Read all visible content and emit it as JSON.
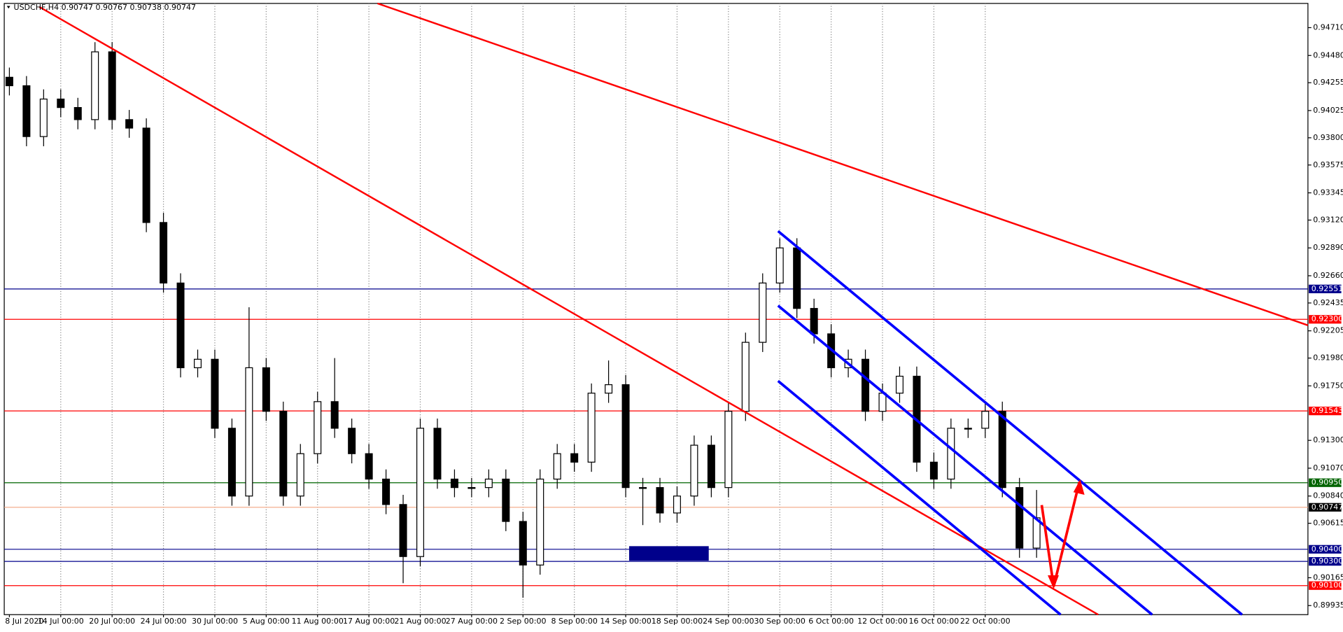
{
  "chart_data": {
    "type": "candlestick",
    "title": "USDCHF,H4  0.90747 0.90767 0.90738 0.90747",
    "categories": [
      "8 Jul 2020",
      "14 Jul 00:00",
      "20 Jul 00:00",
      "24 Jul 00:00",
      "30 Jul 00:00",
      "5 Aug 00:00",
      "11 Aug 00:00",
      "17 Aug 00:00",
      "21 Aug 00:00",
      "27 Aug 00:00",
      "2 Sep 00:00",
      "8 Sep 00:00",
      "14 Sep 00:00",
      "18 Sep 00:00",
      "24 Sep 00:00",
      "30 Sep 00:00",
      "6 Oct 00:00",
      "12 Oct 00:00",
      "16 Oct 00:00",
      "22 Oct 00:00"
    ],
    "ohlc": [
      [
        0.943,
        0.9438,
        0.9415,
        0.9423
      ],
      [
        0.9423,
        0.9431,
        0.9373,
        0.9381
      ],
      [
        0.9381,
        0.942,
        0.9373,
        0.9412
      ],
      [
        0.9412,
        0.942,
        0.9397,
        0.9405
      ],
      [
        0.9405,
        0.9413,
        0.9387,
        0.9395
      ],
      [
        0.9395,
        0.9459,
        0.9387,
        0.9451
      ],
      [
        0.9451,
        0.9459,
        0.9387,
        0.9395
      ],
      [
        0.9395,
        0.9403,
        0.938,
        0.9388
      ],
      [
        0.9388,
        0.9396,
        0.9302,
        0.931
      ],
      [
        0.931,
        0.9318,
        0.9252,
        0.926
      ],
      [
        0.926,
        0.9268,
        0.9182,
        0.919
      ],
      [
        0.919,
        0.9205,
        0.9182,
        0.9197
      ],
      [
        0.9197,
        0.9205,
        0.9132,
        0.914
      ],
      [
        0.914,
        0.9148,
        0.9076,
        0.9084
      ],
      [
        0.9084,
        0.924,
        0.9076,
        0.919
      ],
      [
        0.919,
        0.9198,
        0.9146,
        0.9154
      ],
      [
        0.9154,
        0.9162,
        0.9076,
        0.9084
      ],
      [
        0.9084,
        0.9127,
        0.9076,
        0.9119
      ],
      [
        0.9119,
        0.917,
        0.9111,
        0.9162
      ],
      [
        0.9162,
        0.9198,
        0.9132,
        0.914
      ],
      [
        0.914,
        0.9148,
        0.9111,
        0.9119
      ],
      [
        0.9119,
        0.9127,
        0.909,
        0.9098
      ],
      [
        0.9098,
        0.9106,
        0.9069,
        0.9077
      ],
      [
        0.9077,
        0.9085,
        0.9012,
        0.9034
      ],
      [
        0.9034,
        0.9148,
        0.9026,
        0.914
      ],
      [
        0.914,
        0.9148,
        0.909,
        0.9098
      ],
      [
        0.9098,
        0.9106,
        0.9083,
        0.9091
      ],
      [
        0.9091,
        0.9099,
        0.9083,
        0.9091
      ],
      [
        0.9091,
        0.9106,
        0.9083,
        0.9098
      ],
      [
        0.9098,
        0.9106,
        0.9055,
        0.9063
      ],
      [
        0.9063,
        0.9071,
        0.9,
        0.9027
      ],
      [
        0.9027,
        0.9106,
        0.9019,
        0.9098
      ],
      [
        0.9098,
        0.9127,
        0.909,
        0.9119
      ],
      [
        0.9119,
        0.9127,
        0.9104,
        0.9112
      ],
      [
        0.9112,
        0.9177,
        0.9104,
        0.9169
      ],
      [
        0.9169,
        0.9196,
        0.9161,
        0.9176
      ],
      [
        0.9176,
        0.9184,
        0.9083,
        0.9091
      ],
      [
        0.9091,
        0.9099,
        0.906,
        0.9091
      ],
      [
        0.9091,
        0.9099,
        0.9062,
        0.907
      ],
      [
        0.907,
        0.9092,
        0.9062,
        0.9084
      ],
      [
        0.9084,
        0.9134,
        0.9076,
        0.9126
      ],
      [
        0.9126,
        0.9134,
        0.9083,
        0.9091
      ],
      [
        0.9091,
        0.9162,
        0.9083,
        0.9154
      ],
      [
        0.9154,
        0.9219,
        0.9146,
        0.9211
      ],
      [
        0.9211,
        0.9268,
        0.9203,
        0.926
      ],
      [
        0.926,
        0.9297,
        0.9252,
        0.9289
      ],
      [
        0.9289,
        0.9297,
        0.9231,
        0.9239
      ],
      [
        0.9239,
        0.9247,
        0.921,
        0.9218
      ],
      [
        0.9218,
        0.9226,
        0.9182,
        0.919
      ],
      [
        0.919,
        0.9205,
        0.9182,
        0.9197
      ],
      [
        0.9197,
        0.9205,
        0.9146,
        0.9154
      ],
      [
        0.9154,
        0.9177,
        0.9146,
        0.9169
      ],
      [
        0.9169,
        0.9191,
        0.9161,
        0.9183
      ],
      [
        0.9183,
        0.9191,
        0.9104,
        0.9112
      ],
      [
        0.9112,
        0.912,
        0.909,
        0.9098
      ],
      [
        0.9098,
        0.9148,
        0.909,
        0.914
      ],
      [
        0.914,
        0.9148,
        0.9132,
        0.914
      ],
      [
        0.914,
        0.9162,
        0.9132,
        0.9154
      ],
      [
        0.9154,
        0.9162,
        0.9083,
        0.9091
      ],
      [
        0.9091,
        0.9099,
        0.9033,
        0.9041
      ],
      [
        0.9041,
        0.9089,
        0.9033,
        0.9066
      ]
    ],
    "ylim": [
      0.8986,
      0.9491
    ],
    "yticks": [
      {
        "value": 0.9471,
        "label": "0.94710"
      },
      {
        "value": 0.9448,
        "label": "0.94480"
      },
      {
        "value": 0.94255,
        "label": "0.94255"
      },
      {
        "value": 0.94025,
        "label": "0.94025"
      },
      {
        "value": 0.938,
        "label": "0.93800"
      },
      {
        "value": 0.93575,
        "label": "0.93575"
      },
      {
        "value": 0.93345,
        "label": "0.93345"
      },
      {
        "value": 0.9312,
        "label": "0.93120"
      },
      {
        "value": 0.9289,
        "label": "0.92890"
      },
      {
        "value": 0.9266,
        "label": "0.92660"
      },
      {
        "value": 0.92435,
        "label": "0.92435"
      },
      {
        "value": 0.92205,
        "label": "0.92205"
      },
      {
        "value": 0.9198,
        "label": "0.91980"
      },
      {
        "value": 0.9175,
        "label": "0.91750"
      },
      {
        "value": 0.913,
        "label": "0.91300"
      },
      {
        "value": 0.9107,
        "label": "0.91070"
      },
      {
        "value": 0.9084,
        "label": "0.90840"
      },
      {
        "value": 0.90615,
        "label": "0.90615"
      },
      {
        "value": 0.90165,
        "label": "0.90165"
      },
      {
        "value": 0.89935,
        "label": "0.89935"
      }
    ],
    "hlines": [
      {
        "value": 0.92551,
        "label": "0.92551",
        "color": "#00008b"
      },
      {
        "value": 0.923,
        "label": "0.92300",
        "color": "#ff0000"
      },
      {
        "value": 0.91543,
        "label": "0.91543",
        "color": "#ff0000"
      },
      {
        "value": 0.9095,
        "label": "0.90950",
        "color": "#006400"
      },
      {
        "value": 0.90747,
        "label": "0.90747",
        "color": "#000000"
      },
      {
        "value": 0.904,
        "label": "0.90400",
        "color": "#00008b"
      },
      {
        "value": 0.903,
        "label": "0.90300",
        "color": "#00008b"
      },
      {
        "value": 0.901,
        "label": "0.90100",
        "color": "#ff0000"
      }
    ],
    "grid": true
  }
}
